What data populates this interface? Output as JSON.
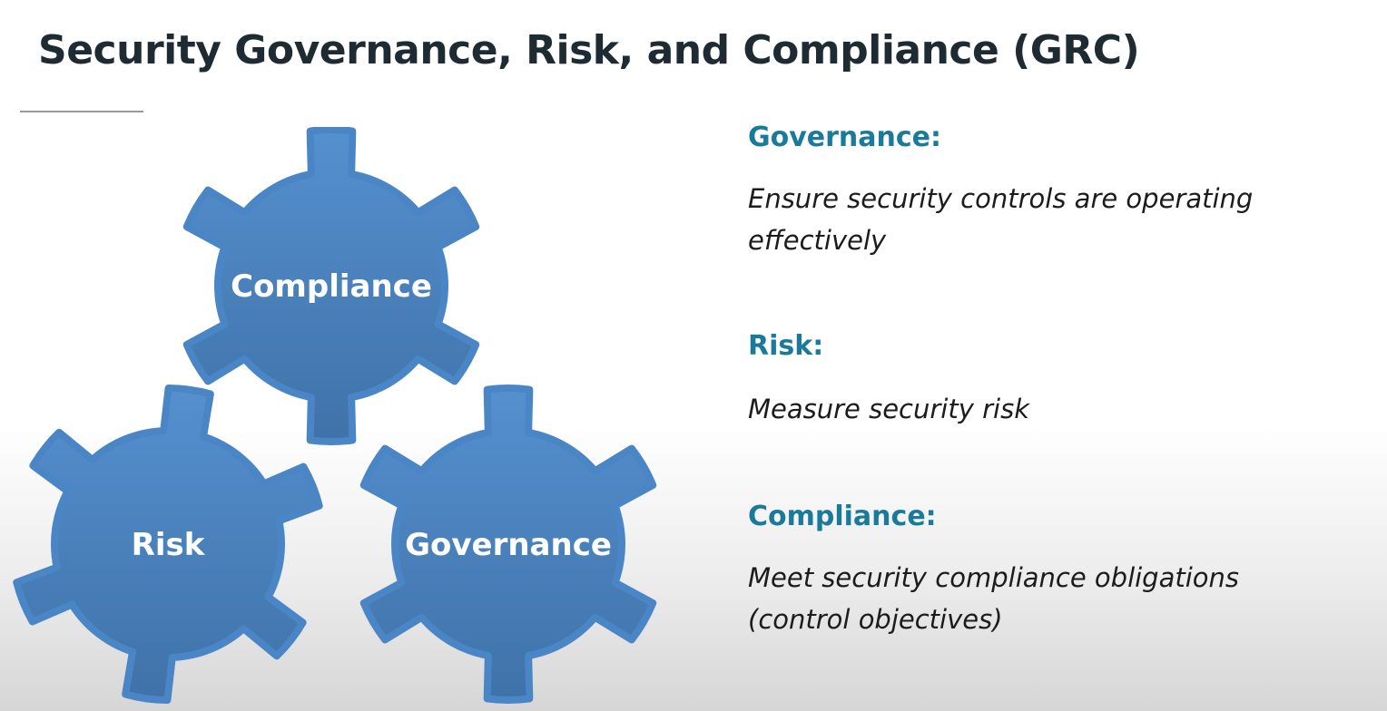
{
  "title": "Security Governance, Risk, and Compliance (GRC)",
  "colors": {
    "gear_fill": "#4a86c6",
    "gear_fill_dark": "#3d6fa3",
    "term_color": "#1a7a9a",
    "title_color": "#1e2b33"
  },
  "diagram": {
    "gears": [
      {
        "label": "Compliance"
      },
      {
        "label": "Risk"
      },
      {
        "label": "Governance"
      }
    ]
  },
  "definitions": [
    {
      "term": "Governance:",
      "description": "Ensure security controls are operating effectively"
    },
    {
      "term": "Risk:",
      "description": "Measure security risk"
    },
    {
      "term": "Compliance:",
      "description": "Meet security compliance obligations (control objectives)"
    }
  ]
}
